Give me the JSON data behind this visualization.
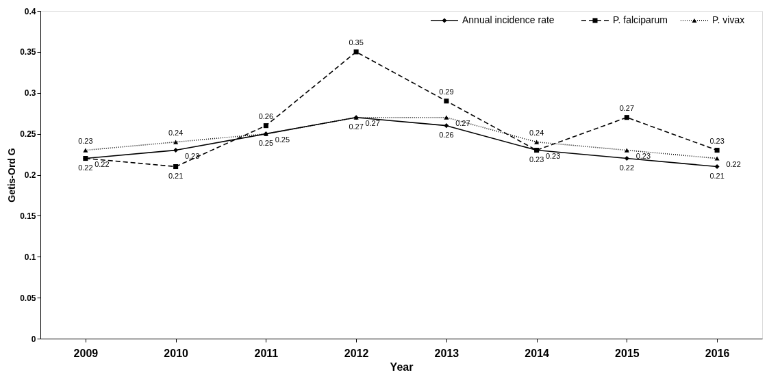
{
  "chart_data": {
    "type": "line",
    "xlabel": "Year",
    "ylabel": "Getis-Ord G",
    "categories": [
      "2009",
      "2010",
      "2011",
      "2012",
      "2013",
      "2014",
      "2015",
      "2016"
    ],
    "series": [
      {
        "name": "Annual incidence rate",
        "color": "#000000",
        "line_style": "solid",
        "marker": "diamond",
        "values": [
          0.22,
          0.23,
          0.25,
          0.27,
          0.26,
          0.23,
          0.22,
          0.21
        ]
      },
      {
        "name": "P. falciparum",
        "color": "#000000",
        "line_style": "dashed",
        "marker": "square",
        "values": [
          0.22,
          0.21,
          0.26,
          0.35,
          0.29,
          0.23,
          0.27,
          0.23
        ]
      },
      {
        "name": "P. vivax",
        "color": "#000000",
        "line_style": "dotted",
        "marker": "triangle",
        "values": [
          0.23,
          0.24,
          0.25,
          0.27,
          0.27,
          0.24,
          0.23,
          0.22
        ]
      }
    ],
    "ylim": [
      0,
      0.4
    ],
    "yticks": [
      0,
      0.05,
      0.1,
      0.15,
      0.2,
      0.25,
      0.3,
      0.35,
      0.4
    ],
    "grid": false,
    "legend": "top right",
    "data_labels": true
  }
}
